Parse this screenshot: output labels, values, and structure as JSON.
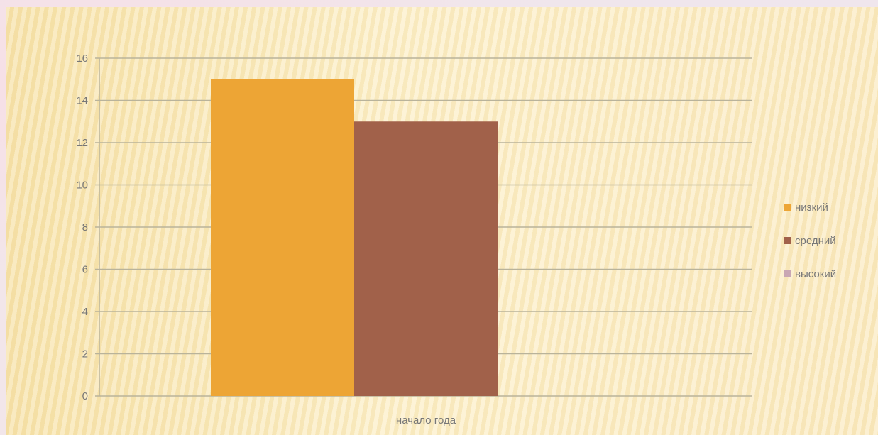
{
  "chart_data": {
    "type": "bar",
    "categories": [
      "начало года"
    ],
    "series": [
      {
        "name": "низкий",
        "values": [
          15
        ],
        "color": "#eda535"
      },
      {
        "name": "средний",
        "values": [
          13
        ],
        "color": "#a1614a"
      },
      {
        "name": "высокий",
        "values": [
          0
        ],
        "color": "#c9a7b4"
      }
    ],
    "yticks": [
      "0",
      "2",
      "4",
      "6",
      "8",
      "10",
      "12",
      "14",
      "16"
    ],
    "ylim": [
      0,
      16
    ],
    "grid": true,
    "legend": "right",
    "gridline_color": "#b9b39a"
  }
}
